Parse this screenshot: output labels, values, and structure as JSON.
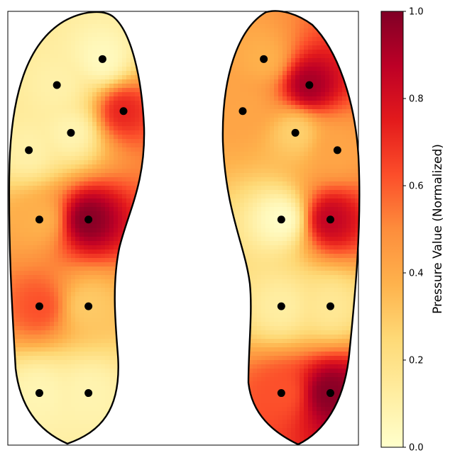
{
  "chart_data": {
    "type": "heatmap",
    "title": "",
    "colormap": "YlOrRd",
    "colorbar": {
      "label": "Pressure Value (Normalized)",
      "range": [
        0,
        1
      ],
      "ticks": [
        "0.0",
        "0.2",
        "0.4",
        "0.6",
        "0.8",
        "1.0"
      ],
      "colors": [
        "#ffffcc",
        "#ffeda0",
        "#fed976",
        "#feb24c",
        "#fd8d3c",
        "#fc4e2a",
        "#e31a1c",
        "#bd0026",
        "#800026"
      ]
    },
    "grid": false,
    "axes_ticks_visible": false,
    "outline_color": "#000000",
    "sensor_color": "#000000",
    "feet": [
      {
        "side": "left",
        "sensors": [
          {
            "x": 0.27,
            "y": 0.89,
            "value": 0.04
          },
          {
            "x": 0.14,
            "y": 0.83,
            "value": 0.1
          },
          {
            "x": 0.33,
            "y": 0.77,
            "value": 0.72
          },
          {
            "x": 0.18,
            "y": 0.72,
            "value": 0.08
          },
          {
            "x": 0.06,
            "y": 0.68,
            "value": 0.1
          },
          {
            "x": 0.09,
            "y": 0.52,
            "value": 0.38
          },
          {
            "x": 0.23,
            "y": 0.52,
            "value": 0.98
          },
          {
            "x": 0.09,
            "y": 0.32,
            "value": 0.62
          },
          {
            "x": 0.23,
            "y": 0.32,
            "value": 0.3
          },
          {
            "x": 0.09,
            "y": 0.12,
            "value": 0.07
          },
          {
            "x": 0.23,
            "y": 0.12,
            "value": 0.08
          }
        ]
      },
      {
        "side": "right",
        "sensors": [
          {
            "x": 0.73,
            "y": 0.89,
            "value": 0.38
          },
          {
            "x": 0.86,
            "y": 0.83,
            "value": 0.92
          },
          {
            "x": 0.67,
            "y": 0.77,
            "value": 0.42
          },
          {
            "x": 0.82,
            "y": 0.72,
            "value": 0.28
          },
          {
            "x": 0.94,
            "y": 0.68,
            "value": 0.42
          },
          {
            "x": 0.78,
            "y": 0.52,
            "value": 0.02
          },
          {
            "x": 0.92,
            "y": 0.52,
            "value": 0.85
          },
          {
            "x": 0.78,
            "y": 0.32,
            "value": 0.12
          },
          {
            "x": 0.92,
            "y": 0.32,
            "value": 0.16
          },
          {
            "x": 0.78,
            "y": 0.12,
            "value": 0.62
          },
          {
            "x": 0.92,
            "y": 0.12,
            "value": 0.98
          }
        ]
      }
    ]
  }
}
